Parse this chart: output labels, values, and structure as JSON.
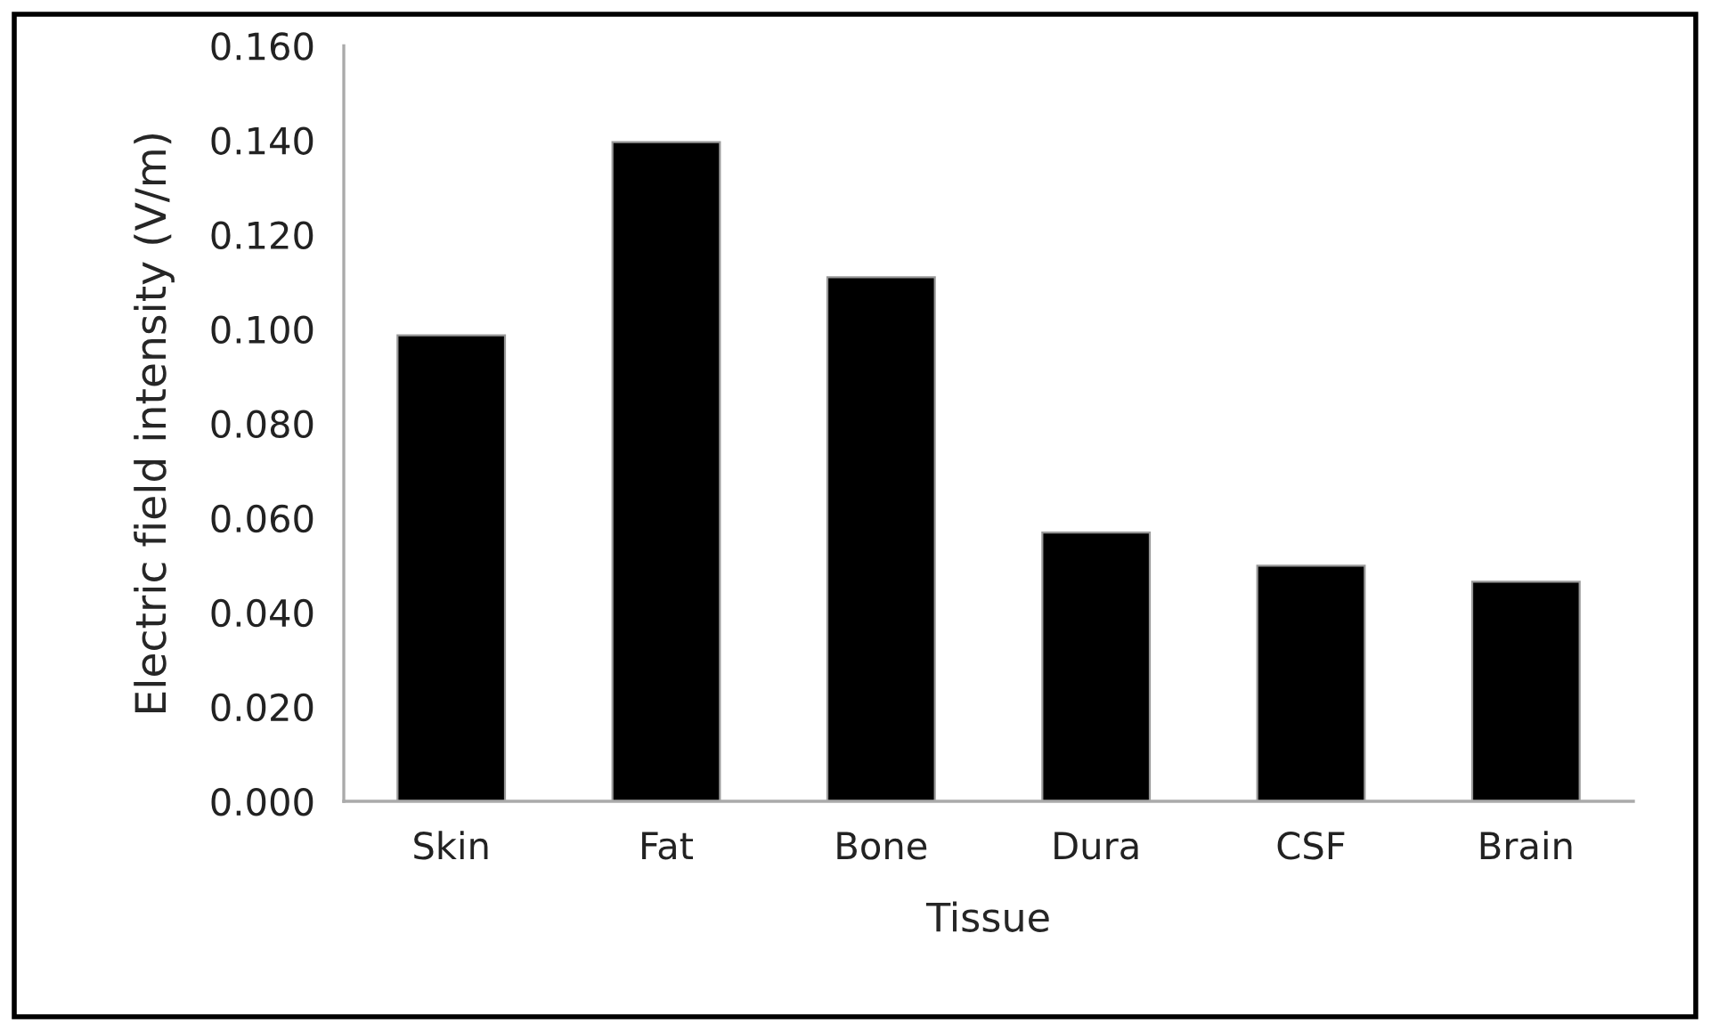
{
  "chart_data": {
    "type": "bar",
    "xlabel": "Tissue",
    "ylabel": "Electric field intensity (V/m)",
    "categories": [
      "Skin",
      "Fat",
      "Bone",
      "Dura",
      "CSF",
      "Brain"
    ],
    "values": [
      0.0987,
      0.1396,
      0.111,
      0.0569,
      0.0499,
      0.0465
    ],
    "color": "#000000",
    "ylim": [
      0,
      0.16
    ],
    "yticks": [
      {
        "value": 0,
        "label": "0.000"
      },
      {
        "value": 0.02,
        "label": "0.020"
      },
      {
        "value": 0.04,
        "label": "0.040"
      },
      {
        "value": 0.06,
        "label": "0.060"
      },
      {
        "value": 0.08,
        "label": "0.080"
      },
      {
        "value": 0.1,
        "label": "0.100"
      },
      {
        "value": 0.12,
        "label": "0.120"
      },
      {
        "value": 0.14,
        "label": "0.140"
      },
      {
        "value": 0.16,
        "label": "0.160"
      }
    ],
    "grid": false,
    "legend": false
  }
}
